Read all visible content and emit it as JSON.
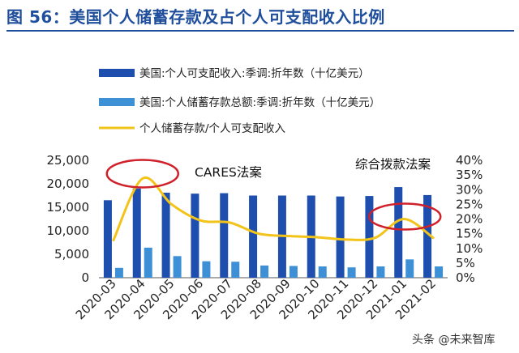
{
  "figure": {
    "title": "图 56：美国个人储蓄存款及占个人可支配收入比例",
    "watermark": "头条 @未来智库"
  },
  "chart_data": {
    "type": "bar",
    "categories": [
      "2020-03",
      "2020-04",
      "2020-05",
      "2020-06",
      "2020-07",
      "2020-08",
      "2020-09",
      "2020-10",
      "2020-11",
      "2020-12",
      "2021-01",
      "2021-02"
    ],
    "series": [
      {
        "name": "美国:个人可支配收入:季调:折年数（十亿美元）",
        "kind": "bar",
        "axis": "left",
        "color": "#1f4fae",
        "values": [
          16500,
          19000,
          18100,
          17900,
          18000,
          17500,
          17500,
          17500,
          17300,
          17400,
          19300,
          17600
        ]
      },
      {
        "name": "美国:个人储蓄存款总额:季调:折年数（十亿美元）",
        "kind": "bar",
        "axis": "left",
        "color": "#3d8fd6",
        "values": [
          2100,
          6400,
          4600,
          3500,
          3400,
          2600,
          2500,
          2400,
          2200,
          2400,
          3900,
          2400
        ]
      },
      {
        "name": "个人储蓄存款/个人可支配收入",
        "kind": "line",
        "axis": "right",
        "color": "#f2c319",
        "values": [
          12.8,
          33.8,
          25.0,
          19.5,
          18.8,
          15.0,
          14.2,
          13.8,
          13.0,
          13.6,
          20.0,
          13.6
        ]
      }
    ],
    "y_left": {
      "min": 0,
      "max": 25000,
      "ticks": [
        "0",
        "5,000",
        "10,000",
        "15,000",
        "20,000",
        "25,000"
      ]
    },
    "y_right": {
      "min": 0,
      "max": 40,
      "ticks": [
        "0%",
        "5%",
        "10%",
        "15%",
        "20%",
        "25%",
        "30%",
        "35%",
        "40%"
      ]
    },
    "annotations": [
      {
        "text": "CARES法案",
        "target_category": "2020-04"
      },
      {
        "text": "综合拨款法案",
        "target_category": "2021-01"
      }
    ],
    "highlight_color": "#d0202a",
    "grid": false,
    "legend_position": "top"
  }
}
